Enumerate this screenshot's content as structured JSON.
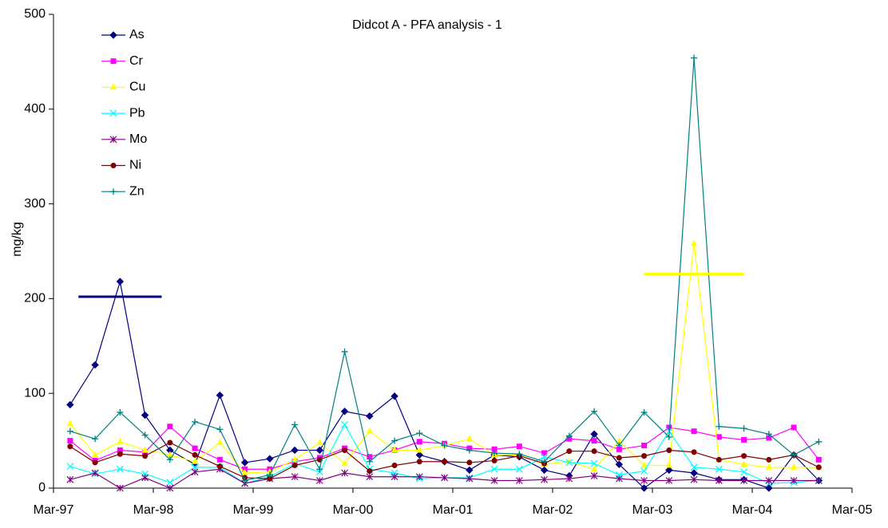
{
  "chart_data": {
    "type": "line",
    "title": "Didcot A - PFA analysis - 1",
    "y_label": "mg/kg",
    "x": [
      "May-97",
      "Aug-97",
      "Nov-97",
      "Feb-98",
      "May-98",
      "Aug-98",
      "Nov-98",
      "Feb-99",
      "May-99",
      "Aug-99",
      "Nov-99",
      "Feb-00",
      "May-00",
      "Aug-00",
      "Nov-00",
      "Feb-01",
      "May-01",
      "Aug-01",
      "Nov-01",
      "Feb-02",
      "May-02",
      "Aug-02",
      "Nov-02",
      "Feb-03",
      "May-03",
      "Aug-03",
      "Nov-03",
      "Feb-04",
      "May-04",
      "Aug-04",
      "Nov-04"
    ],
    "series": [
      {
        "name": "As",
        "color": "#000080",
        "marker": "diamond",
        "values": [
          88,
          130,
          218,
          77,
          40,
          25,
          98,
          27,
          31,
          40,
          40,
          81,
          76,
          97,
          35,
          28,
          19,
          35,
          33,
          19,
          13,
          57,
          25,
          0,
          19,
          16,
          9,
          9,
          0,
          35,
          8
        ]
      },
      {
        "name": "Cr",
        "color": "#FF00FF",
        "marker": "square",
        "values": [
          50,
          29,
          40,
          38,
          65,
          42,
          30,
          20,
          20,
          28,
          32,
          42,
          33,
          40,
          49,
          47,
          42,
          41,
          44,
          37,
          52,
          50,
          41,
          45,
          64,
          60,
          54,
          51,
          53,
          64,
          30
        ]
      },
      {
        "name": "Cu",
        "color": "#FFFF00",
        "marker": "triangle",
        "values": [
          68,
          35,
          49,
          40,
          35,
          28,
          48,
          16,
          17,
          30,
          48,
          26,
          60,
          40,
          40,
          45,
          52,
          35,
          35,
          25,
          28,
          20,
          50,
          24,
          24,
          258,
          30,
          25,
          22,
          22,
          22
        ]
      },
      {
        "name": "Pb",
        "color": "#00FFFF",
        "marker": "cross",
        "values": [
          23,
          15,
          20,
          15,
          6,
          22,
          22,
          5,
          12,
          26,
          17,
          67,
          20,
          16,
          10,
          11,
          11,
          20,
          20,
          33,
          27,
          26,
          14,
          18,
          60,
          22,
          20,
          17,
          5,
          6,
          8
        ]
      },
      {
        "name": "Mo",
        "color": "#800080",
        "marker": "star",
        "values": [
          9,
          16,
          0,
          11,
          0,
          17,
          20,
          5,
          10,
          12,
          8,
          16,
          12,
          12,
          12,
          11,
          10,
          8,
          8,
          9,
          10,
          13,
          10,
          8,
          8,
          9,
          8,
          8,
          8,
          8,
          8
        ]
      },
      {
        "name": "Ni",
        "color": "#800000",
        "marker": "circle",
        "values": [
          44,
          27,
          36,
          34,
          48,
          35,
          23,
          11,
          10,
          24,
          30,
          40,
          18,
          24,
          28,
          28,
          27,
          29,
          34,
          26,
          39,
          39,
          32,
          34,
          40,
          38,
          30,
          34,
          30,
          35,
          22
        ]
      },
      {
        "name": "Zn",
        "color": "#008080",
        "marker": "plus",
        "values": [
          60,
          52,
          80,
          56,
          30,
          70,
          62,
          8,
          14,
          67,
          20,
          144,
          28,
          50,
          58,
          45,
          40,
          37,
          36,
          28,
          55,
          81,
          45,
          80,
          54,
          454,
          65,
          63,
          57,
          35,
          49
        ]
      }
    ],
    "reference_lines": [
      {
        "value": 202,
        "color": "#000080",
        "from": "Jun-97",
        "to": "Apr-98"
      },
      {
        "value": 226,
        "color": "#FFFF00",
        "from": "Feb-03",
        "to": "Feb-04"
      }
    ],
    "xlim": [
      "Mar-97",
      "Mar-05"
    ],
    "xticks": [
      "Mar-97",
      "Mar-98",
      "Mar-99",
      "Mar-00",
      "Mar-01",
      "Mar-02",
      "Mar-03",
      "Mar-04",
      "Mar-05"
    ],
    "ylim": [
      0,
      500
    ],
    "yticks": [
      0,
      100,
      200,
      300,
      400,
      500
    ],
    "grid": false,
    "legend": "upper-left"
  }
}
